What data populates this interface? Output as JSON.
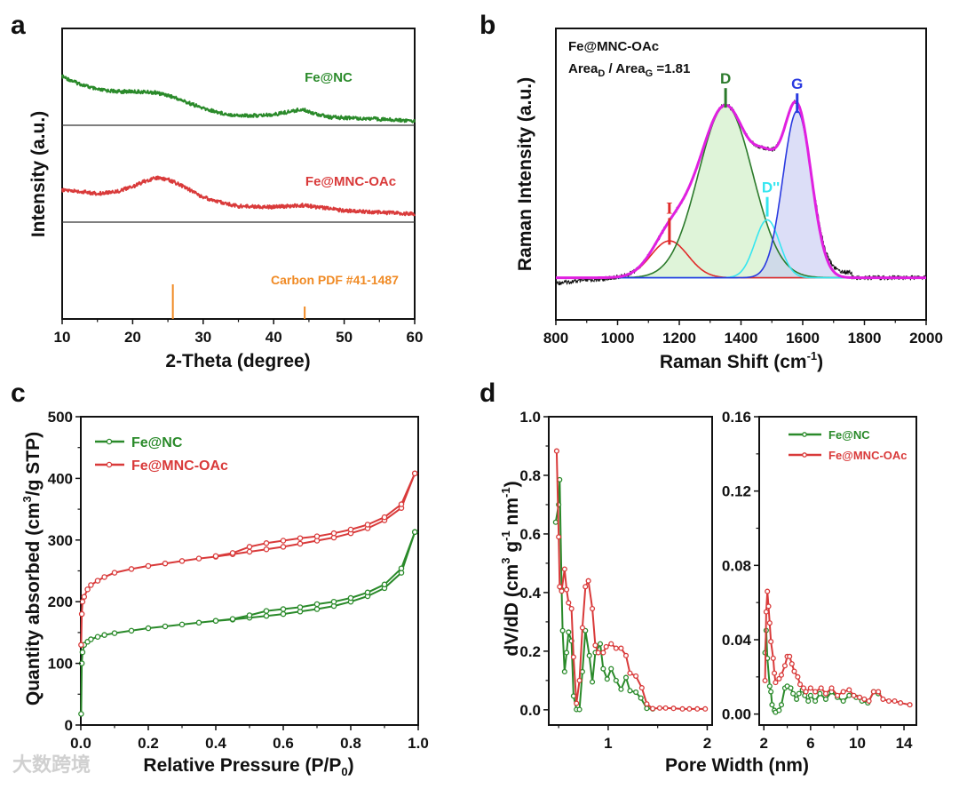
{
  "watermark": "大数跨境",
  "colors": {
    "green": "#2a8a2a",
    "red": "#d93a3a",
    "orange": "#f08a24",
    "magenta": "#e020e0",
    "cyan": "#35e6f0",
    "blue": "#2a3ae0",
    "dgreen": "#2b7a2b"
  },
  "chart_data": [
    {
      "panel": "a",
      "type": "line",
      "xlabel": "2-Theta (degree)",
      "ylabel": "Intensity (a.u.)",
      "xlim": [
        10,
        60
      ],
      "xticks": [
        "10",
        "20",
        "30",
        "40",
        "50",
        "60"
      ],
      "series": [
        {
          "name": "Fe@NC",
          "color": "#2a8a2a",
          "offset": 1,
          "x": [
            10,
            12,
            15,
            18,
            20,
            23,
            25,
            27,
            30,
            33,
            35,
            38,
            40,
            42,
            44,
            46,
            48,
            52,
            55,
            60
          ],
          "y": [
            55,
            48,
            40,
            38,
            38,
            37,
            34,
            28,
            19,
            13,
            11,
            11,
            12,
            15,
            18,
            13,
            9,
            8,
            7,
            5
          ]
        },
        {
          "name": "Fe@MNC-OAc",
          "color": "#d93a3a",
          "offset": 0,
          "x": [
            10,
            13,
            15,
            18,
            20,
            22,
            23.5,
            25,
            27,
            30,
            33,
            35,
            40,
            44,
            47,
            50,
            55,
            60
          ],
          "y": [
            36,
            34,
            32,
            35,
            40,
            47,
            50,
            48,
            41,
            28,
            21,
            18,
            17,
            19,
            16,
            13,
            11,
            9
          ]
        },
        {
          "name": "Carbon PDF #41-1487",
          "type": "stick",
          "color": "#f08a24",
          "x": [
            25.7,
            44.4
          ],
          "y": [
            100,
            36
          ]
        }
      ]
    },
    {
      "panel": "b",
      "type": "line",
      "xlabel_parts": [
        "Raman Shift  (cm",
        "-1",
        ")"
      ],
      "ylabel": "Raman Intensity  (a.u.)",
      "xlim": [
        800,
        2000
      ],
      "ylim": [
        -0.24,
        1.42
      ],
      "xticks": [
        "800",
        "1000",
        "1200",
        "1400",
        "1600",
        "1800",
        "2000"
      ],
      "annotation_title": "Fe@MNC-OAc",
      "annotation_ratio_parts": [
        "Area",
        "D",
        " / Area",
        "G",
        " =1.81"
      ],
      "peaks": [
        {
          "label": "I",
          "center": 1168,
          "amplitude": 0.21,
          "sigma": 60,
          "color": "#e02b2b"
        },
        {
          "label": "D",
          "center": 1350,
          "amplitude": 0.98,
          "sigma": 88,
          "color": "#2b7a2b"
        },
        {
          "label": "D''",
          "center": 1485,
          "amplitude": 0.33,
          "sigma": 40,
          "color": "#35e6f0"
        },
        {
          "label": "G",
          "center": 1582,
          "amplitude": 0.95,
          "sigma": 46,
          "color": "#2a3ae0"
        }
      ],
      "fit_color": "#e020e0",
      "raw_color": "#111111"
    },
    {
      "panel": "c",
      "type": "line",
      "xlabel_parts": [
        "Relative Pressure  (P/P",
        "0",
        ")"
      ],
      "ylabel_parts": [
        "Quantity absorbed  (cm",
        "3",
        "/g STP)"
      ],
      "xlim": [
        0,
        1
      ],
      "ylim": [
        0,
        500
      ],
      "xticks": [
        "0.0",
        "0.2",
        "0.4",
        "0.6",
        "0.8",
        "1.0"
      ],
      "yticks": [
        "0",
        "100",
        "200",
        "300",
        "400",
        "500"
      ],
      "legend": "top-left",
      "series": [
        {
          "name": "Fe@NC",
          "color": "#2a8a2a",
          "adsorption": {
            "x": [
              0.001,
              0.003,
              0.005,
              0.01,
              0.02,
              0.03,
              0.05,
              0.07,
              0.1,
              0.15,
              0.2,
              0.25,
              0.3,
              0.35,
              0.4,
              0.45,
              0.5,
              0.55,
              0.6,
              0.65,
              0.7,
              0.75,
              0.8,
              0.85,
              0.9,
              0.95,
              0.99
            ],
            "y": [
              18,
              100,
              118,
              130,
              135,
              139,
              143,
              146,
              149,
              153,
              157,
              160,
              163,
              166,
              169,
              171,
              174,
              177,
              180,
              184,
              188,
              193,
              200,
              209,
              222,
              247,
              313
            ]
          },
          "desorption": {
            "x": [
              0.99,
              0.95,
              0.9,
              0.85,
              0.8,
              0.75,
              0.7,
              0.65,
              0.6,
              0.55,
              0.5,
              0.45,
              0.4
            ],
            "y": [
              313,
              254,
              228,
              215,
              206,
              200,
              196,
              191,
              188,
              185,
              178,
              172,
              169
            ]
          }
        },
        {
          "name": "Fe@MNC-OAc",
          "color": "#d93a3a",
          "adsorption": {
            "x": [
              0.001,
              0.003,
              0.005,
              0.01,
              0.02,
              0.03,
              0.05,
              0.07,
              0.1,
              0.15,
              0.2,
              0.25,
              0.3,
              0.35,
              0.4,
              0.45,
              0.5,
              0.55,
              0.6,
              0.65,
              0.7,
              0.75,
              0.8,
              0.85,
              0.9,
              0.95,
              0.99
            ],
            "y": [
              130,
              180,
              200,
              208,
              220,
              227,
              234,
              240,
              247,
              253,
              258,
              262,
              266,
              270,
              273,
              277,
              281,
              285,
              289,
              294,
              299,
              304,
              311,
              319,
              332,
              352,
              408
            ]
          },
          "desorption": {
            "x": [
              0.99,
              0.95,
              0.9,
              0.85,
              0.8,
              0.75,
              0.7,
              0.65,
              0.6,
              0.55,
              0.5,
              0.45,
              0.4
            ],
            "y": [
              408,
              358,
              337,
              325,
              317,
              311,
              306,
              303,
              299,
              295,
              289,
              279,
              274
            ]
          }
        }
      ]
    },
    {
      "panel": "d",
      "type": "line",
      "xlabel": "Pore  Width  (nm)",
      "ylabel_parts": [
        "dV/dD (cm",
        "3",
        " g",
        "-1",
        " nm",
        "-1",
        ")"
      ],
      "legend": "top-right of right subplot",
      "subplots": [
        {
          "xlim": [
            0.4,
            2.05
          ],
          "ylim": [
            0,
            1.0
          ],
          "xticks": [
            "1",
            "2"
          ],
          "yticks": [
            "0.0",
            "0.2",
            "0.4",
            "0.6",
            "0.8",
            "1.0"
          ],
          "series": [
            {
              "name": "Fe@NC",
              "color": "#2a8a2a",
              "x": [
                0.47,
                0.5,
                0.51,
                0.53,
                0.54,
                0.56,
                0.58,
                0.6,
                0.63,
                0.65,
                0.68,
                0.71,
                0.74,
                0.77,
                0.81,
                0.84,
                0.87,
                0.92,
                0.95,
                0.99,
                1.03,
                1.08,
                1.13,
                1.18,
                1.22,
                1.28,
                1.33,
                1.39,
                1.45
              ],
              "y": [
                0.64,
                0.7,
                0.785,
                0.41,
                0.27,
                0.13,
                0.195,
                0.265,
                0.235,
                0.047,
                0.001,
                0.001,
                0.13,
                0.27,
                0.185,
                0.095,
                0.195,
                0.225,
                0.14,
                0.105,
                0.14,
                0.1,
                0.07,
                0.11,
                0.065,
                0.06,
                0.04,
                0.005,
                0.003
              ]
            },
            {
              "name": "Fe@MNC-OAc",
              "color": "#d93a3a",
              "x": [
                0.48,
                0.5,
                0.51,
                0.53,
                0.56,
                0.58,
                0.6,
                0.63,
                0.65,
                0.68,
                0.71,
                0.74,
                0.77,
                0.8,
                0.84,
                0.87,
                0.9,
                0.95,
                0.98,
                1.03,
                1.08,
                1.13,
                1.18,
                1.22,
                1.28,
                1.34,
                1.39,
                1.45,
                1.52,
                1.58,
                1.66,
                1.75,
                1.82,
                1.9,
                1.98
              ],
              "y": [
                0.883,
                0.59,
                0.42,
                0.405,
                0.48,
                0.41,
                0.365,
                0.345,
                0.18,
                0.022,
                0.1,
                0.28,
                0.42,
                0.44,
                0.345,
                0.22,
                0.195,
                0.195,
                0.215,
                0.225,
                0.21,
                0.21,
                0.185,
                0.125,
                0.115,
                0.075,
                0.02,
                0.004,
                0.006,
                0.006,
                0.005,
                0.003,
                0.003,
                0.003,
                0.003
              ]
            }
          ]
        },
        {
          "xlim": [
            1.6,
            15.06
          ],
          "ylim": [
            0,
            0.16
          ],
          "xticks": [
            "2",
            "6",
            "10",
            "14"
          ],
          "yticks": [
            "0.00",
            "0.04",
            "0.08",
            "0.12",
            "0.16"
          ],
          "series": [
            {
              "name": "Fe@NC",
              "color": "#2a8a2a",
              "x": [
                2.1,
                2.2,
                2.3,
                2.5,
                2.6,
                2.7,
                2.9,
                3.0,
                3.3,
                3.5,
                3.8,
                4.0,
                4.3,
                4.5,
                4.8,
                5.0,
                5.3,
                5.5,
                5.8,
                6.0,
                6.4,
                6.8,
                7.3,
                7.8,
                8.3,
                8.8,
                9.3,
                9.9,
                10.4,
                10.9,
                11.4,
                11.8
              ],
              "y": [
                0.033,
                0.045,
                0.03,
                0.015,
                0.012,
                0.005,
                0.002,
                0.001,
                0.002,
                0.005,
                0.014,
                0.015,
                0.014,
                0.011,
                0.008,
                0.011,
                0.013,
                0.01,
                0.007,
                0.01,
                0.007,
                0.011,
                0.008,
                0.012,
                0.009,
                0.007,
                0.01,
                0.009,
                0.007,
                0.006,
                0.012,
                0.011
              ]
            },
            {
              "name": "Fe@MNC-OAc",
              "color": "#d93a3a",
              "x": [
                2.1,
                2.2,
                2.3,
                2.4,
                2.5,
                2.6,
                2.8,
                2.9,
                3.0,
                3.3,
                3.5,
                3.8,
                4.0,
                4.2,
                4.4,
                4.6,
                4.9,
                5.1,
                5.4,
                5.6,
                6.0,
                6.4,
                6.9,
                7.3,
                7.8,
                8.3,
                8.8,
                9.3,
                9.7,
                10.2,
                10.6,
                11.0,
                11.4,
                11.8,
                12.2,
                12.7,
                13.2,
                13.7,
                14.5
              ],
              "y": [
                0.018,
                0.055,
                0.066,
                0.058,
                0.049,
                0.039,
                0.03,
                0.022,
                0.017,
                0.019,
                0.021,
                0.026,
                0.031,
                0.031,
                0.027,
                0.023,
                0.02,
                0.016,
                0.014,
                0.012,
                0.014,
                0.012,
                0.014,
                0.011,
                0.014,
                0.01,
                0.012,
                0.013,
                0.01,
                0.009,
                0.008,
                0.007,
                0.012,
                0.012,
                0.008,
                0.007,
                0.007,
                0.006,
                0.005
              ]
            }
          ]
        }
      ]
    }
  ],
  "panel_letters": [
    "a",
    "b",
    "c",
    "d"
  ]
}
